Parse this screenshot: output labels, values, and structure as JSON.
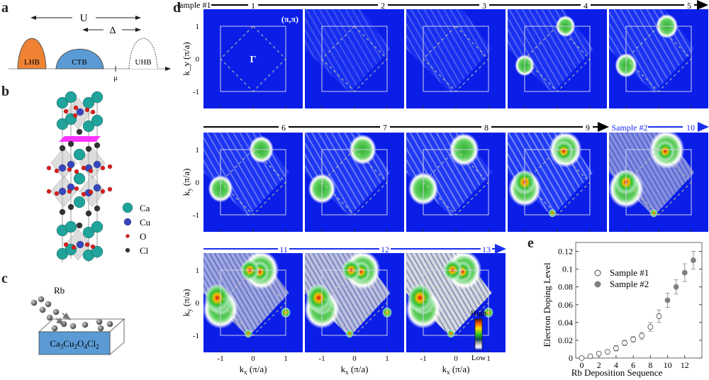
{
  "panel_labels": {
    "a": "a",
    "b": "b",
    "c": "c",
    "d": "d",
    "e": "e"
  },
  "panel_a": {
    "U": "U",
    "Delta": "Δ",
    "bands": [
      "LHB",
      "CTB",
      "UHB"
    ],
    "mu": "μ",
    "colors": {
      "LHB": "#ef8233",
      "CTB": "#5b9bd5",
      "UHB": "#ffffff"
    }
  },
  "panel_b": {
    "legend": [
      {
        "label": "Ca",
        "color": "#1fa39b"
      },
      {
        "label": "Cu",
        "color": "#3546c0"
      },
      {
        "label": "O",
        "color": "#e01b1b"
      },
      {
        "label": "Cl",
        "color": "#333333"
      }
    ],
    "plane_color": "#ff33ff"
  },
  "panel_c": {
    "adatom": "Rb",
    "substrate": "Ca3Cu2O4Cl2",
    "substrate_parts": [
      "Ca",
      "3",
      "Cu",
      "2",
      "O",
      "4",
      "Cl",
      "2"
    ],
    "substrate_color": "#5b9bd5"
  },
  "panel_d": {
    "rows": [
      {
        "color": "#000000",
        "start": "Sample #1",
        "labels": [
          "1",
          "2",
          "3",
          "4",
          "5"
        ]
      },
      {
        "color": "#000000",
        "labels": [
          "6",
          "7",
          "8",
          "9"
        ],
        "sample2": "Sample #2",
        "sample2_labels": [
          "10"
        ],
        "sample2_color": "#1a2ef0"
      },
      {
        "color": "#1a2ef0",
        "labels": [
          "11",
          "12",
          "13"
        ]
      }
    ],
    "maps": [
      "1",
      "2",
      "3",
      "4",
      "5",
      "6",
      "7",
      "8",
      "9",
      "10",
      "11",
      "12",
      "13"
    ],
    "corner_label": "(π,π)",
    "center_label": "Γ",
    "ylabel": "k_y (π/a)",
    "ylabel_main": "k",
    "ylabel_sub": "y",
    "ylabel_unit": " (π/a)",
    "xlabel_main": "k",
    "xlabel_sub": "x",
    "xlabel_unit": " (π/a)",
    "ticks": [
      "-1",
      "0",
      "1"
    ],
    "colorbar": {
      "high": "High",
      "low": "Low"
    },
    "background_color": "#0a1ee8"
  },
  "chart_data": {
    "type": "scatter",
    "xlabel": "Rb Deposition Sequence",
    "ylabel": "Electron Doping Level",
    "xlim": [
      -0.7,
      14
    ],
    "ylim": [
      0,
      0.13
    ],
    "xticks": [
      "0",
      "2",
      "4",
      "6",
      "8",
      "10",
      "12"
    ],
    "yticks": [
      "0",
      "0.02",
      "0.04",
      "0.06",
      "0.08",
      "0.1",
      "0.12"
    ],
    "legend_position": "upper-left",
    "series": [
      {
        "name": "Sample #1",
        "marker": "open-circle",
        "x": [
          0,
          1,
          2,
          3,
          4,
          5,
          6,
          7,
          8,
          9
        ],
        "y": [
          0,
          0.002,
          0.005,
          0.007,
          0.011,
          0.017,
          0.021,
          0.025,
          0.035,
          0.047
        ],
        "err": [
          0.002,
          0.002,
          0.002,
          0.002,
          0.003,
          0.003,
          0.003,
          0.004,
          0.005,
          0.007
        ]
      },
      {
        "name": "Sample #2",
        "marker": "filled-circle",
        "color": "#808080",
        "x": [
          10,
          11,
          12,
          13
        ],
        "y": [
          0.065,
          0.08,
          0.096,
          0.11
        ],
        "err": [
          0.008,
          0.008,
          0.01,
          0.01
        ]
      }
    ]
  }
}
